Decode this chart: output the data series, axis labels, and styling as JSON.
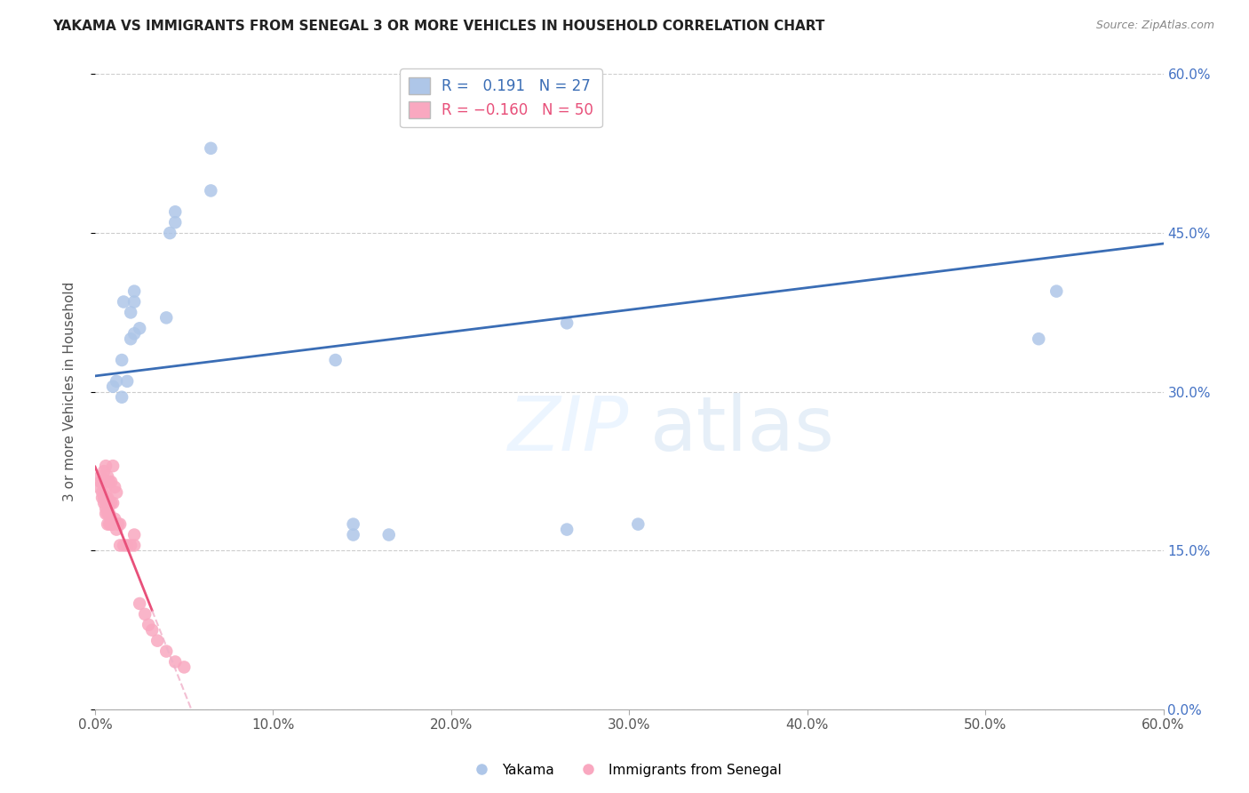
{
  "title": "YAKAMA VS IMMIGRANTS FROM SENEGAL 3 OR MORE VEHICLES IN HOUSEHOLD CORRELATION CHART",
  "source": "Source: ZipAtlas.com",
  "ylabel": "3 or more Vehicles in Household",
  "xlim": [
    0.0,
    0.6
  ],
  "ylim": [
    0.0,
    0.6
  ],
  "xtick_labels": [
    "0.0%",
    "10.0%",
    "20.0%",
    "30.0%",
    "40.0%",
    "50.0%",
    "60.0%"
  ],
  "xtick_vals": [
    0.0,
    0.1,
    0.2,
    0.3,
    0.4,
    0.5,
    0.6
  ],
  "ytick_vals": [
    0.0,
    0.15,
    0.3,
    0.45,
    0.6
  ],
  "ytick_labels_right": [
    "0.0%",
    "15.0%",
    "30.0%",
    "45.0%",
    "60.0%"
  ],
  "blue_R": 0.191,
  "blue_N": 27,
  "pink_R": -0.16,
  "pink_N": 50,
  "blue_color": "#aec6e8",
  "pink_color": "#f9a8c0",
  "blue_line_color": "#3a6db5",
  "pink_line_color": "#e8507a",
  "pink_dash_color": "#f0b0c8",
  "background_color": "#ffffff",
  "grid_color": "#cccccc",
  "yakama_x": [
    0.01,
    0.012,
    0.015,
    0.015,
    0.016,
    0.018,
    0.02,
    0.02,
    0.022,
    0.022,
    0.022,
    0.025,
    0.04,
    0.042,
    0.045,
    0.045,
    0.065,
    0.065,
    0.135,
    0.145,
    0.145,
    0.165,
    0.265,
    0.265,
    0.305,
    0.53,
    0.54
  ],
  "yakama_y": [
    0.305,
    0.31,
    0.295,
    0.33,
    0.385,
    0.31,
    0.35,
    0.375,
    0.355,
    0.385,
    0.395,
    0.36,
    0.37,
    0.45,
    0.46,
    0.47,
    0.49,
    0.53,
    0.33,
    0.165,
    0.175,
    0.165,
    0.17,
    0.365,
    0.175,
    0.35,
    0.395
  ],
  "senegal_x": [
    0.002,
    0.003,
    0.003,
    0.004,
    0.004,
    0.004,
    0.005,
    0.005,
    0.005,
    0.005,
    0.006,
    0.006,
    0.006,
    0.006,
    0.006,
    0.006,
    0.007,
    0.007,
    0.007,
    0.007,
    0.008,
    0.008,
    0.008,
    0.008,
    0.009,
    0.009,
    0.009,
    0.01,
    0.01,
    0.01,
    0.011,
    0.011,
    0.012,
    0.012,
    0.013,
    0.014,
    0.014,
    0.016,
    0.018,
    0.02,
    0.022,
    0.022,
    0.025,
    0.028,
    0.03,
    0.032,
    0.035,
    0.04,
    0.045,
    0.05
  ],
  "senegal_y": [
    0.21,
    0.215,
    0.22,
    0.2,
    0.205,
    0.215,
    0.195,
    0.2,
    0.215,
    0.225,
    0.185,
    0.19,
    0.195,
    0.2,
    0.21,
    0.23,
    0.175,
    0.185,
    0.2,
    0.22,
    0.175,
    0.185,
    0.195,
    0.215,
    0.175,
    0.195,
    0.215,
    0.175,
    0.195,
    0.23,
    0.18,
    0.21,
    0.17,
    0.205,
    0.175,
    0.155,
    0.175,
    0.155,
    0.155,
    0.155,
    0.155,
    0.165,
    0.1,
    0.09,
    0.08,
    0.075,
    0.065,
    0.055,
    0.045,
    0.04
  ]
}
